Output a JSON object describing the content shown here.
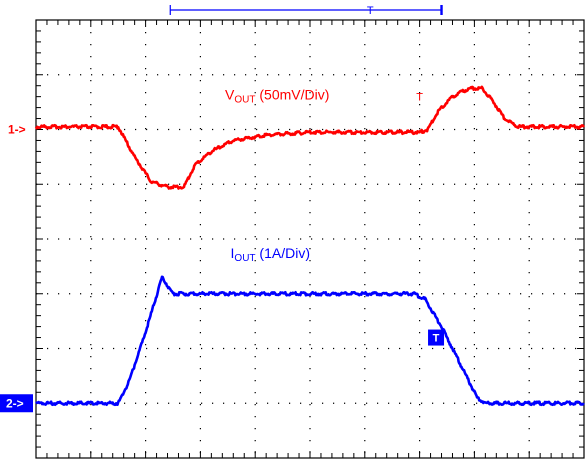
{
  "chart_data": {
    "type": "line",
    "title": "",
    "xlabel": "",
    "ylabel": "",
    "grid": true,
    "x_divisions": 10,
    "y_divisions": 8,
    "xlim": [
      0,
      10
    ],
    "ylim": [
      -4,
      4
    ],
    "series": [
      {
        "name_main": "V",
        "name_sub": "OUT",
        "name_rest": " (50mV/Div)",
        "color": "#ff0000",
        "x": [
          0,
          1.5,
          1.8,
          2.1,
          2.4,
          2.7,
          2.9,
          3.2,
          3.6,
          4.2,
          5.0,
          6.0,
          7.0,
          7.15,
          7.35,
          7.6,
          7.9,
          8.15,
          8.35,
          8.55,
          8.8,
          9.1,
          10
        ],
        "y": [
          2.05,
          2.05,
          1.5,
          1.05,
          0.95,
          0.95,
          1.35,
          1.6,
          1.8,
          1.9,
          1.95,
          1.95,
          1.95,
          2.0,
          2.35,
          2.6,
          2.75,
          2.75,
          2.5,
          2.2,
          2.05,
          2.05,
          2.05
        ]
      },
      {
        "name_main": "I",
        "name_sub": "OUT",
        "name_rest": " (1A/Div)",
        "color": "#0000ff",
        "x": [
          0,
          1.5,
          1.7,
          2.0,
          2.3,
          2.5,
          3.0,
          4.0,
          5.0,
          6.0,
          6.9,
          7.1,
          7.4,
          7.8,
          8.05,
          8.2,
          9.0,
          10
        ],
        "y": [
          -3.0,
          -3.0,
          -2.6,
          -1.7,
          -0.7,
          -1.0,
          -1.0,
          -1.0,
          -1.0,
          -1.0,
          -1.0,
          -1.1,
          -1.6,
          -2.4,
          -2.9,
          -3.0,
          -3.0,
          -3.0
        ]
      }
    ],
    "channel_markers": [
      {
        "label": "1->",
        "level": 2.0,
        "color": "#ff0000"
      },
      {
        "label": "2->",
        "level": -3.0,
        "color": "#0000ff"
      }
    ],
    "trigger_markers": [
      {
        "label": "T",
        "x": 7.0,
        "y": 2.6,
        "color": "#ff0000"
      },
      {
        "label": "T",
        "x": 7.3,
        "y": -1.8,
        "color": "#0000ff"
      }
    ],
    "timebase_bracket": {
      "start": 2.45,
      "end": 7.4,
      "trigger": 6.1,
      "label": "T"
    }
  }
}
